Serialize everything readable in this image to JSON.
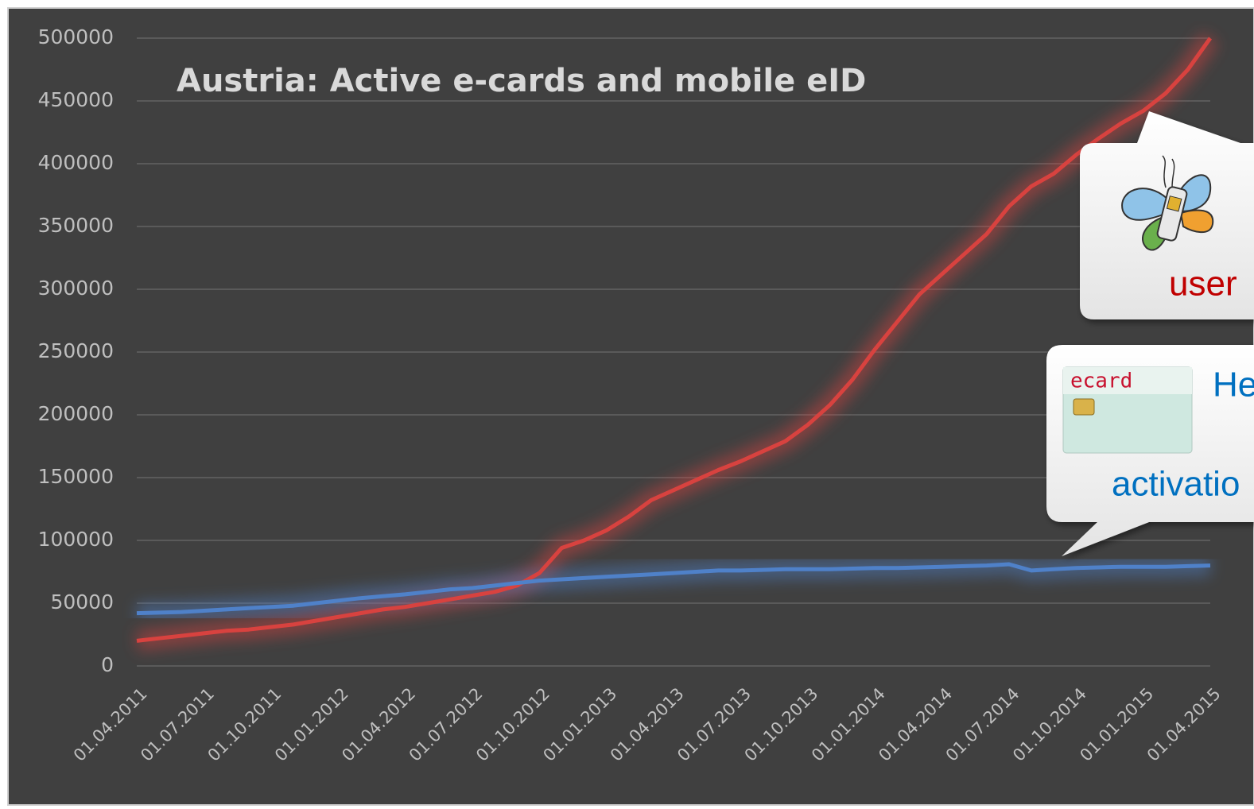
{
  "chart_data": {
    "type": "line",
    "title": "Austria: Active e-cards and mobile eID",
    "categories": [
      "01.04.2011",
      null,
      null,
      "01.07.2011",
      null,
      null,
      "01.10.2011",
      null,
      null,
      "01.01.2012",
      null,
      null,
      "01.04.2012",
      null,
      null,
      "01.07.2012",
      null,
      null,
      "01.10.2012",
      null,
      null,
      "01.01.2013",
      null,
      null,
      "01.04.2013",
      null,
      null,
      "01.07.2013",
      null,
      null,
      "01.10.2013",
      null,
      null,
      "01.01.2014",
      null,
      null,
      "01.04.2014",
      null,
      null,
      "01.07.2014",
      null,
      null,
      "01.10.2014",
      null,
      null,
      "01.01.2015",
      null,
      null,
      "01.04.2015"
    ],
    "series": [
      {
        "color": "#d8423f",
        "values": [
          20000,
          22000,
          24000,
          26000,
          28000,
          29000,
          31000,
          33000,
          36000,
          39000,
          42000,
          45000,
          47000,
          50000,
          53000,
          56000,
          59000,
          64000,
          74000,
          94000,
          100000,
          108000,
          119000,
          132000,
          140000,
          148000,
          156000,
          163000,
          171000,
          179000,
          192000,
          208000,
          228000,
          252000,
          274000,
          296000,
          312000,
          328000,
          344000,
          366000,
          382000,
          392000,
          407000,
          420000,
          432000,
          442000,
          456000,
          475000,
          500000
        ]
      },
      {
        "color": "#4f81c9",
        "values": [
          42000,
          42500,
          43000,
          44000,
          45000,
          46000,
          47000,
          48000,
          50000,
          52000,
          54000,
          55500,
          57000,
          59000,
          61000,
          62000,
          64000,
          66000,
          68000,
          69000,
          70000,
          71000,
          72000,
          73000,
          74000,
          75000,
          76000,
          76000,
          76500,
          77000,
          77000,
          77000,
          77500,
          78000,
          78000,
          78500,
          79000,
          79500,
          80000,
          81000,
          76000,
          77000,
          78000,
          78500,
          79000,
          79000,
          79000,
          79500,
          80000
        ]
      }
    ],
    "ylim": [
      0,
      500000
    ],
    "yticks": [
      0,
      50000,
      100000,
      150000,
      200000,
      250000,
      300000,
      350000,
      400000,
      450000,
      500000
    ],
    "grid": true,
    "annotations": [
      "user",
      "He",
      "activatio",
      "ecard"
    ]
  }
}
